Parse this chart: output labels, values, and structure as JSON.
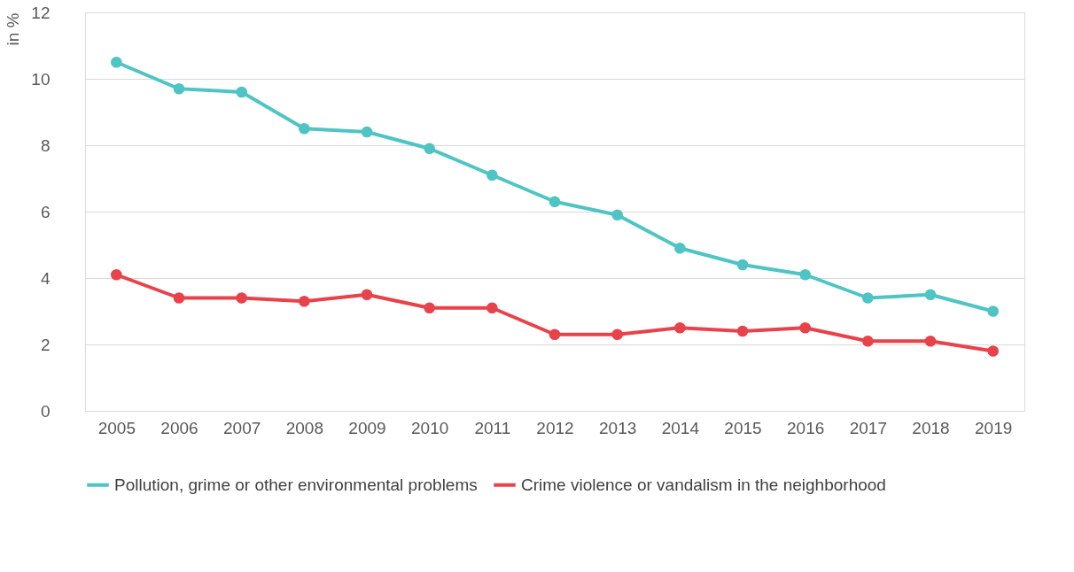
{
  "chart_data": {
    "type": "line",
    "ylabel": "in %",
    "categories": [
      "2005",
      "2006",
      "2007",
      "2008",
      "2009",
      "2010",
      "2011",
      "2012",
      "2013",
      "2014",
      "2015",
      "2016",
      "2017",
      "2018",
      "2019"
    ],
    "series": [
      {
        "name": "Pollution, grime or other environmental problems",
        "color": "#4fc4c4",
        "values": [
          10.5,
          9.7,
          9.6,
          8.5,
          8.4,
          7.9,
          7.1,
          6.3,
          5.9,
          4.9,
          4.4,
          4.1,
          3.4,
          3.5,
          3.0
        ]
      },
      {
        "name": "Crime violence or vandalism in the neighborhood",
        "color": "#e8424a",
        "values": [
          4.1,
          3.4,
          3.4,
          3.3,
          3.5,
          3.1,
          3.1,
          2.3,
          2.3,
          2.5,
          2.4,
          2.5,
          2.1,
          2.1,
          1.8
        ]
      }
    ],
    "ylim": [
      0,
      12
    ],
    "yticks": [
      0,
      2,
      4,
      6,
      8,
      10,
      12
    ],
    "grid": "y",
    "legend": "bottom",
    "marker": "circle",
    "line_style": "solid"
  }
}
